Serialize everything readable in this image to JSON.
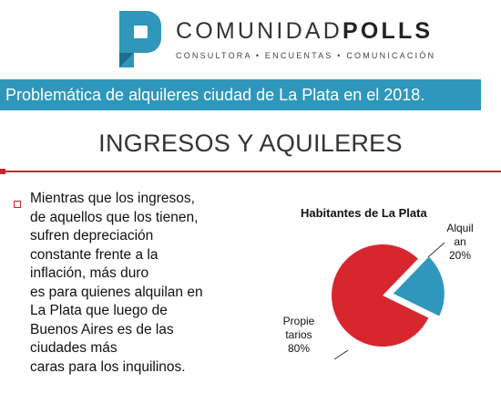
{
  "header": {
    "brand_regular": "COMUNIDAD",
    "brand_bold": "POLLS",
    "tagline": "CONSULTORA • ENCUENTAS • COMUNICACIÓN",
    "brand_color": "#2f97bb"
  },
  "banner": {
    "text": "Problemática de alquileres ciudad de La Plata en el 2018."
  },
  "section": {
    "title": "INGRESOS Y AQUILERES"
  },
  "body": {
    "lines": [
      "Mientras que los ingresos,",
      "de aquellos que los tienen,",
      "sufren depreciación",
      "constante frente a la",
      "inflación, más duro",
      "es para quienes alquilan en",
      "La Plata que luego de",
      "Buenos Aires es de las",
      "ciudades más",
      "caras para los inquilinos."
    ]
  },
  "chart_data": {
    "type": "pie",
    "title": "Habitantes de La Plata",
    "categories": [
      "Alquilan",
      "Propietarios"
    ],
    "values": [
      20,
      80
    ],
    "labels": [
      {
        "lines": [
          "Alquil",
          "an",
          "20%"
        ]
      },
      {
        "lines": [
          "Propie",
          "tarios",
          "80%"
        ]
      }
    ],
    "colors": [
      "#2f97bb",
      "#d8262f"
    ],
    "exploded": "Alquilan"
  }
}
